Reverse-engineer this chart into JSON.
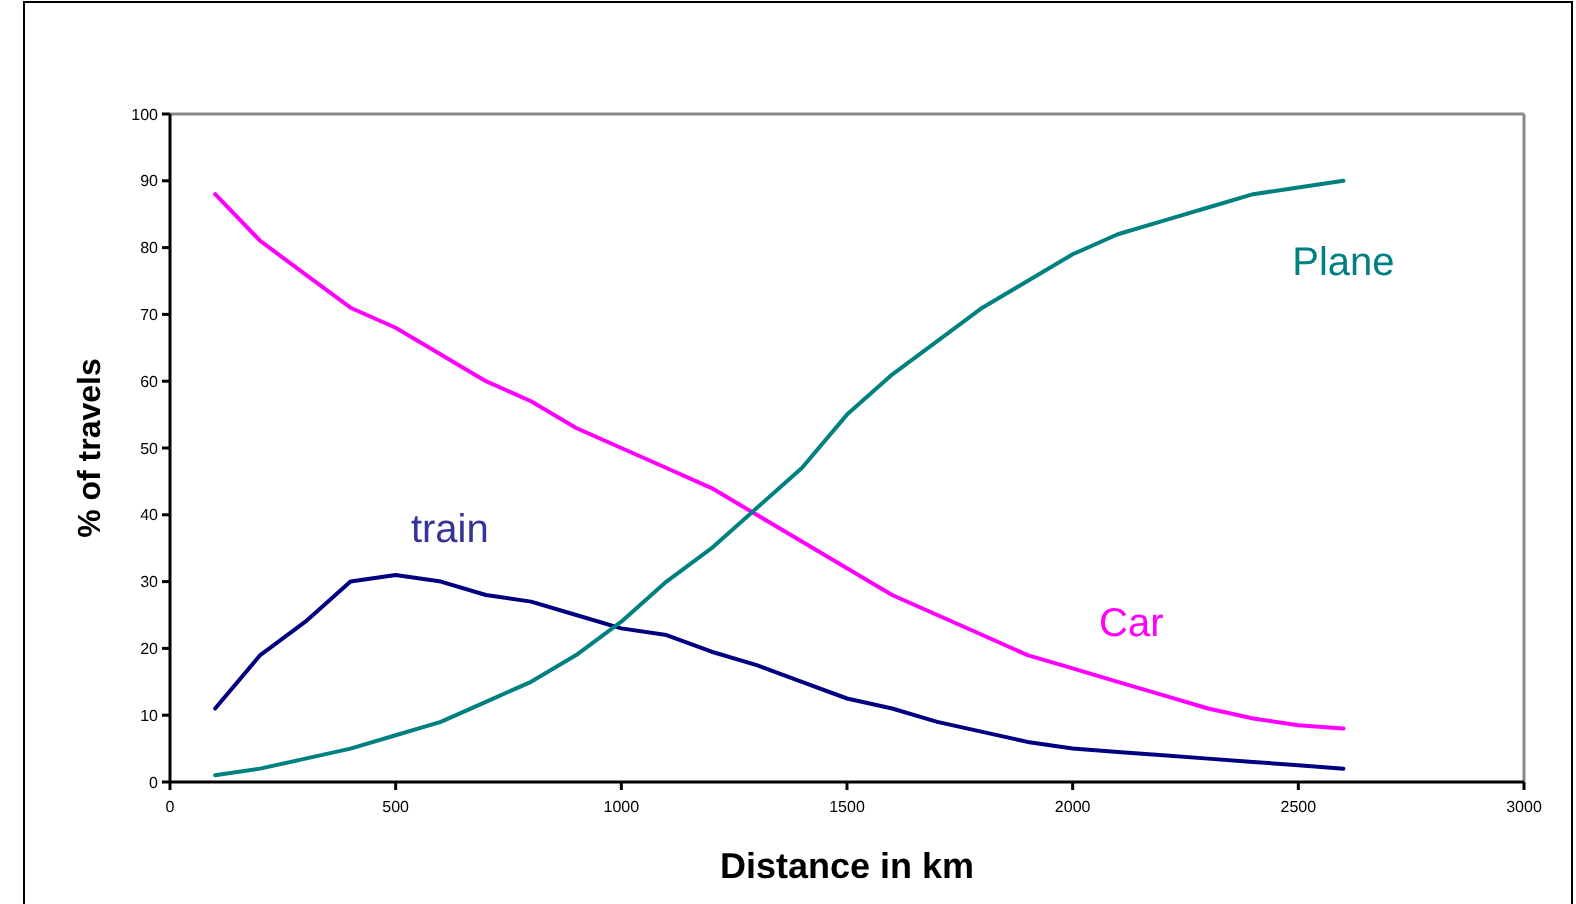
{
  "chart_data": {
    "type": "line",
    "xlabel": "Distance in km",
    "ylabel": "% of travels",
    "xlim": [
      0,
      3000
    ],
    "xticks": [
      0,
      500,
      1000,
      1500,
      2000,
      2500,
      3000
    ],
    "ylim": [
      0,
      100
    ],
    "yticks": [
      0,
      10,
      20,
      30,
      40,
      50,
      60,
      70,
      80,
      90,
      100
    ],
    "grid": false,
    "marker": "none",
    "line_style": "solid",
    "x": [
      100,
      200,
      300,
      400,
      500,
      600,
      700,
      800,
      900,
      1000,
      1100,
      1200,
      1300,
      1400,
      1500,
      1600,
      1700,
      1800,
      1900,
      2000,
      2100,
      2200,
      2300,
      2400,
      2500,
      2600
    ],
    "series": [
      {
        "name": "train",
        "color": "#000080",
        "values": [
          11,
          19,
          24,
          30,
          31,
          30,
          28,
          27,
          25,
          23,
          22,
          19.5,
          17.5,
          15,
          12.5,
          11,
          9,
          7.5,
          6,
          5,
          4.5,
          4,
          3.5,
          3,
          2.5,
          2
        ]
      },
      {
        "name": "Car",
        "color": "#ff00ff",
        "values": [
          88,
          81,
          76,
          71,
          68,
          64,
          60,
          57,
          53,
          50,
          47,
          44,
          40,
          36,
          32,
          28,
          25,
          22,
          19,
          17,
          15,
          13,
          11,
          9.5,
          8.5,
          8
        ]
      },
      {
        "name": "Plane",
        "color": "#008080",
        "values": [
          1,
          2,
          3.5,
          5,
          7,
          9,
          12,
          15,
          19,
          24,
          30,
          35,
          41,
          47,
          55,
          61,
          66,
          71,
          75,
          79,
          82,
          84,
          86,
          88,
          89,
          90
        ]
      }
    ]
  }
}
